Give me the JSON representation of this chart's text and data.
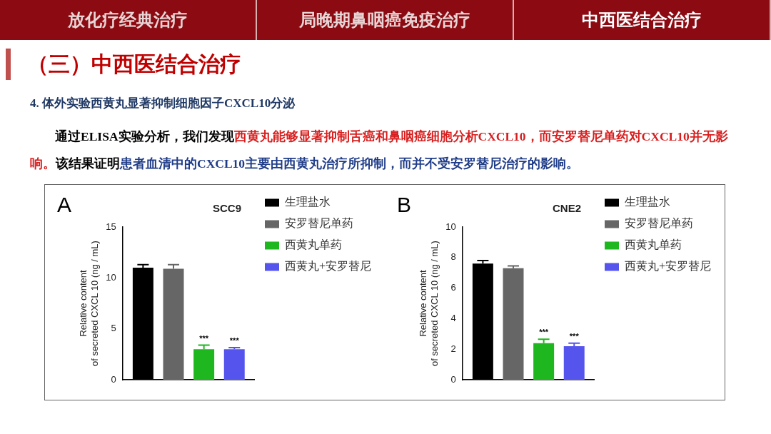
{
  "chart_data": [
    {
      "type": "bar",
      "title": "SCC9",
      "ylabel": "Relative content\nof secreted CXCL 10 (ng / mL)",
      "categories": [
        null
      ],
      "series": [
        {
          "name": "生理盐水",
          "color": "#000000",
          "values": [
            11.0
          ],
          "errors": [
            0.3
          ]
        },
        {
          "name": "安罗替尼单药",
          "color": "#666666",
          "values": [
            10.9
          ],
          "errors": [
            0.4
          ]
        },
        {
          "name": "西黄丸单药",
          "color": "#1fb71f",
          "values": [
            3.0
          ],
          "errors": [
            0.4
          ]
        },
        {
          "name": "西黄丸+安罗替尼",
          "color": "#5555ee",
          "values": [
            3.0
          ],
          "errors": [
            0.15
          ]
        }
      ],
      "ylim": [
        0,
        15
      ],
      "yticks": [
        0,
        5,
        10,
        15
      ],
      "grid": false,
      "legend": "right",
      "tick_labels": "y",
      "annotations": [
        "放化疗经典治疗",
        "局晚期鼻咽癌免疫治疗",
        "中西医结合治疗",
        "（三）中西医结合治疗",
        "4. 体外实验西黄丸显著抑制细胞因子CXCL10分泌",
        "通过ELISA实验分析，我们发现",
        "西黄丸能够显著抑制舌癌和鼻咽癌细胞分析CXCL10，而安罗替尼单药对CXCL10并无影响。",
        "该结果证明",
        "患者血清中的CXCL10主要由西黄丸治疗所抑制，而并不受安罗替尼治疗的影响。",
        "A",
        "***",
        "***"
      ]
    },
    {
      "type": "bar",
      "title": "CNE2",
      "ylabel": "Relative content\nof secreted CXCL 10 (ng / mL)",
      "categories": [
        null
      ],
      "series": [
        {
          "name": "生理盐水",
          "color": "#000000",
          "values": [
            7.6
          ],
          "errors": [
            0.2
          ]
        },
        {
          "name": "安罗替尼单药",
          "color": "#666666",
          "values": [
            7.3
          ],
          "errors": [
            0.15
          ]
        },
        {
          "name": "西黄丸单药",
          "color": "#1fb71f",
          "values": [
            2.4
          ],
          "errors": [
            0.25
          ]
        },
        {
          "name": "西黄丸+安罗替尼",
          "color": "#5555ee",
          "values": [
            2.2
          ],
          "errors": [
            0.2
          ]
        }
      ],
      "ylim": [
        0,
        10
      ],
      "yticks": [
        0,
        2,
        4,
        6,
        8,
        10
      ],
      "grid": false,
      "legend": "right",
      "tick_labels": "y",
      "annotations": [
        "B",
        "***",
        "***"
      ]
    }
  ]
}
